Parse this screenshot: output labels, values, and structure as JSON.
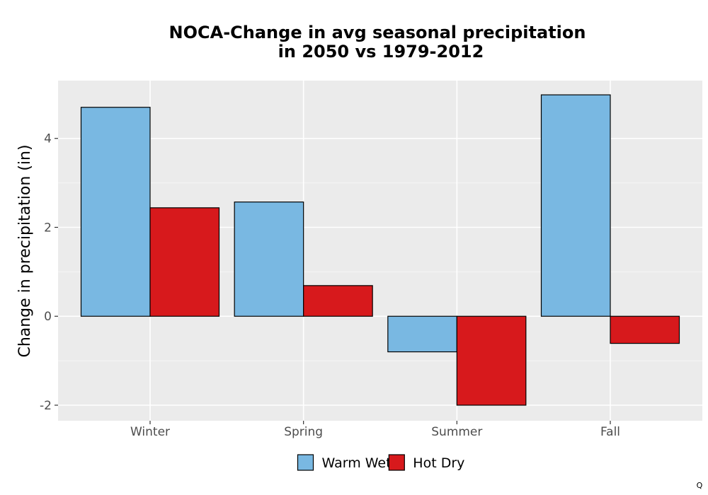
{
  "chart_data": {
    "type": "bar",
    "title": [
      "NOCA-Change in avg seasonal precipitation",
      "in 2050 vs 1979-2012"
    ],
    "xlabel": "",
    "ylabel": "Change in precipitation (in)",
    "categories": [
      "Winter",
      "Spring",
      "Summer",
      "Fall"
    ],
    "series": [
      {
        "name": "Warm Wet",
        "color": "#79b8e2",
        "values": [
          4.7,
          2.57,
          -0.8,
          4.98
        ]
      },
      {
        "name": "Hot Dry",
        "color": "#d7191c",
        "values": [
          2.44,
          0.69,
          -2.0,
          -0.61
        ]
      }
    ],
    "ylim": [
      -2.35,
      5.3
    ],
    "yticks": [
      -2,
      0,
      2,
      4
    ],
    "grid": true,
    "legend_position": "bottom"
  },
  "corner_mark": "Q"
}
